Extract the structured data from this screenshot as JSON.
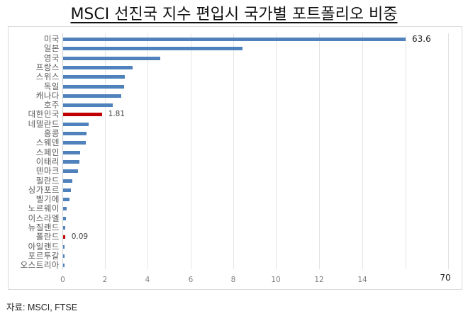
{
  "chart_data": {
    "type": "bar",
    "orientation": "horizontal",
    "title": "MSCI 선진국 지수 편입시 국가별 포트폴리오 비중",
    "xlabel": "",
    "ylabel": "",
    "categories": [
      "미국",
      "일본",
      "영국",
      "프랑스",
      "스위스",
      "독일",
      "캐나다",
      "호주",
      "대한민국",
      "네델란드",
      "홍콩",
      "스웨덴",
      "스페인",
      "이태리",
      "덴마크",
      "필란드",
      "싱가포르",
      "벨기에",
      "노르웨이",
      "이스라엘",
      "뉴질랜드",
      "폴란드",
      "아일랜드",
      "포르투갈",
      "오스트리아"
    ],
    "values": [
      63.6,
      8.38,
      4.52,
      3.26,
      2.89,
      2.84,
      2.7,
      2.31,
      1.81,
      1.2,
      1.1,
      1.07,
      0.78,
      0.75,
      0.7,
      0.44,
      0.36,
      0.29,
      0.18,
      0.14,
      0.11,
      0.09,
      0.07,
      0.05,
      0.05
    ],
    "highlighted": [
      "대한민국",
      "폴란드"
    ],
    "data_labels": [
      {
        "category": "미국",
        "text": "63.6"
      },
      {
        "category": "대한민국",
        "text": "1.81"
      },
      {
        "category": "폴란드",
        "text": "0.09"
      }
    ],
    "x_ticks": [
      "0",
      "2",
      "4",
      "6",
      "8",
      "10",
      "12",
      "14",
      "",
      "70"
    ],
    "xlim": [
      0,
      70
    ],
    "axis_break": "between 14 and 70 (broken scale; last gridline labeled 70)",
    "grid": true,
    "legend": null,
    "colors": {
      "default": "#4f81bd",
      "highlight": "#c00000"
    }
  },
  "page": {
    "title": "MSCI 선진국 지수 편입시 국가별 포트폴리오 비중",
    "source": "자료: MSCI, FTSE"
  }
}
